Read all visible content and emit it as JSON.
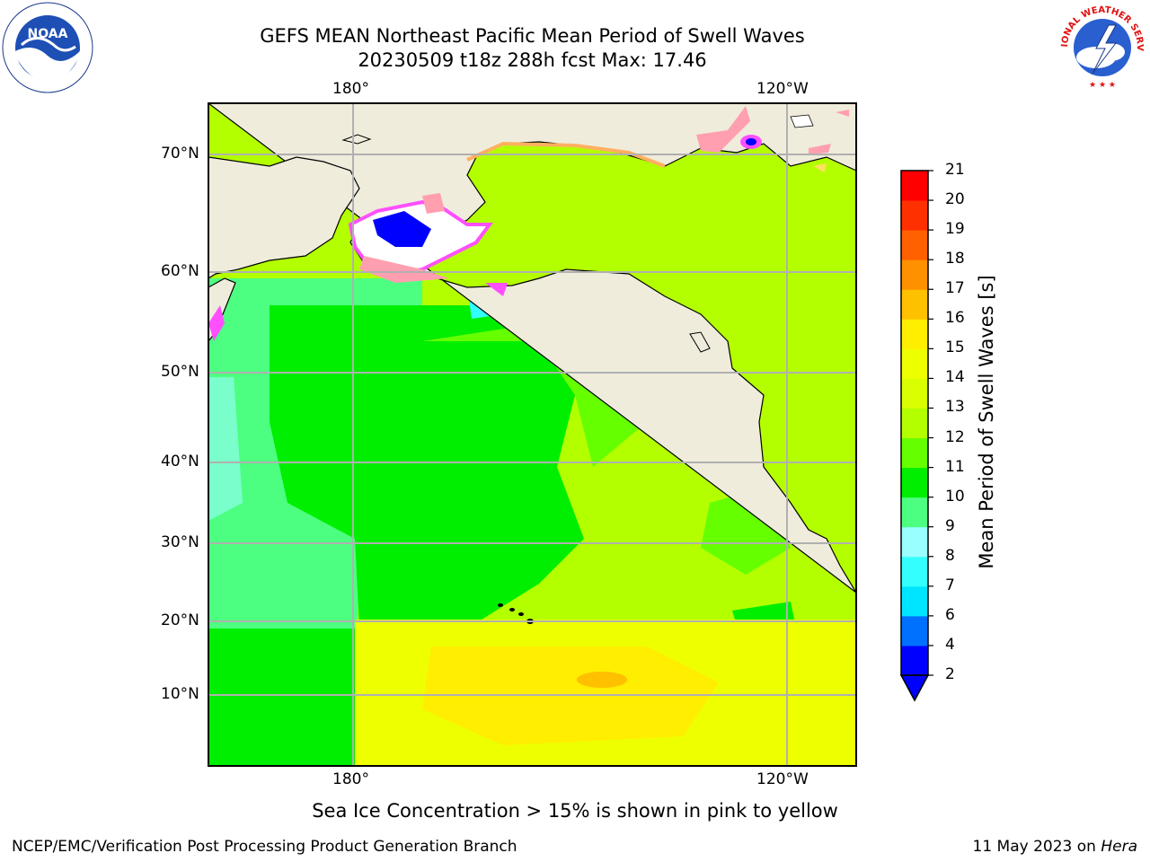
{
  "header": {
    "title_line1": "GEFS MEAN Northeast Pacific Mean Period of Swell Waves",
    "title_line2": "20230509 t18z 288h fcst   Max: 17.46"
  },
  "logos": {
    "left": "NOAA",
    "right": "NATIONAL WEATHER SERVICE"
  },
  "map": {
    "lon_labels_top": [
      "180°",
      "120°W"
    ],
    "lon_labels_bottom": [
      "180°",
      "120°W"
    ],
    "lat_labels": [
      "70°N",
      "60°N",
      "50°N",
      "40°N",
      "30°N",
      "20°N",
      "10°N"
    ],
    "land_color": "#efecdc",
    "ice_colors": [
      "#ff4fff",
      "#ff9fb0",
      "#ffb060",
      "#ffe060"
    ],
    "grid_color": "#b0b0b0"
  },
  "colorbar": {
    "label": "Mean Period of Swell Waves [s]",
    "ticks": [
      "2",
      "4",
      "6",
      "7",
      "8",
      "9",
      "10",
      "11",
      "12",
      "13",
      "14",
      "15",
      "16",
      "17",
      "18",
      "19",
      "20",
      "21"
    ],
    "colors": [
      "#0000ff",
      "#0070ff",
      "#00e5ff",
      "#33ffff",
      "#99ffff",
      "#4dff80",
      "#00ee00",
      "#66ff00",
      "#b3ff00",
      "#d9ff00",
      "#eeff00",
      "#ffee00",
      "#ffc000",
      "#ff9000",
      "#ff6000",
      "#ff3000",
      "#ff0000"
    ]
  },
  "footnote": "Sea Ice Concentration > 15% is shown in pink to yellow",
  "footer": {
    "left": "NCEP/EMC/Verification Post Processing Product Generation Branch",
    "right_prefix": "11 May 2023 on ",
    "right_system": "Hera"
  }
}
